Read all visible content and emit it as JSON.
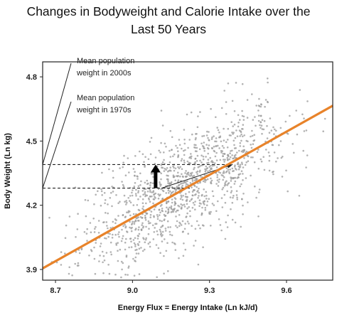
{
  "chart_data": {
    "type": "scatter",
    "title_line1": "Changes in Bodyweight and Calorie Intake over the",
    "title_line2": "Last 50 Years",
    "xlabel": "Energy Flux = Energy Intake (Ln kJ/d)",
    "ylabel": "Body Weight (Ln kg)",
    "xlim": [
      8.65,
      9.78
    ],
    "ylim": [
      3.85,
      4.87
    ],
    "x_ticks": [
      "8.7",
      "9.0",
      "9.3",
      "9.6"
    ],
    "y_ticks": [
      "3.9",
      "4.2",
      "4.5",
      "4.8"
    ],
    "x_tick_values": [
      8.7,
      9.0,
      9.3,
      9.6
    ],
    "y_tick_values": [
      3.9,
      4.2,
      4.5,
      4.8
    ],
    "fit_line": {
      "x": [
        8.65,
        9.78
      ],
      "y": [
        3.905,
        4.665
      ],
      "color": "#e8832a"
    },
    "points": {
      "color": "#9a9a9a",
      "count": 1300,
      "x_center": 9.2,
      "x_sd": 0.2,
      "y_sd": 0.13
    },
    "population_means": [
      {
        "label_line1": "Mean population",
        "label_line2": "weight in 2000s",
        "weight": 4.39,
        "intake": 9.39
      },
      {
        "label_line1": "Mean population",
        "label_line2": "weight in 1970s",
        "weight": 4.28,
        "intake": 9.23
      }
    ]
  }
}
